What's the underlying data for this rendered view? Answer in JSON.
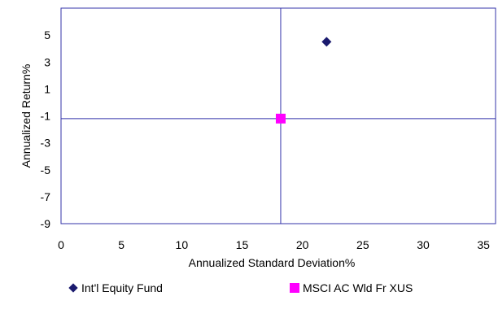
{
  "chart_data": {
    "type": "scatter",
    "xlabel": "Annualized Standard Deviation%",
    "ylabel": "Annualized Return%",
    "xlim": [
      0,
      36
    ],
    "ylim": [
      -9,
      7
    ],
    "xticks": [
      0,
      5,
      10,
      15,
      20,
      25,
      30,
      35
    ],
    "yticks": [
      -9,
      -7,
      -5,
      -3,
      -1,
      1,
      3,
      5
    ],
    "grid": false,
    "legend": "bottom",
    "reference_lines": {
      "x": 18.2,
      "y": -1.2
    },
    "series": [
      {
        "name": "Int'l Equity Fund",
        "marker": "diamond",
        "color": "#1a1a6e",
        "points": [
          {
            "x": 22.0,
            "y": 4.5
          }
        ]
      },
      {
        "name": "MSCI AC Wld Fr XUS",
        "marker": "square",
        "color": "#ff00ff",
        "points": [
          {
            "x": 18.2,
            "y": -1.2
          }
        ]
      }
    ],
    "axis_color": "#3333aa"
  }
}
